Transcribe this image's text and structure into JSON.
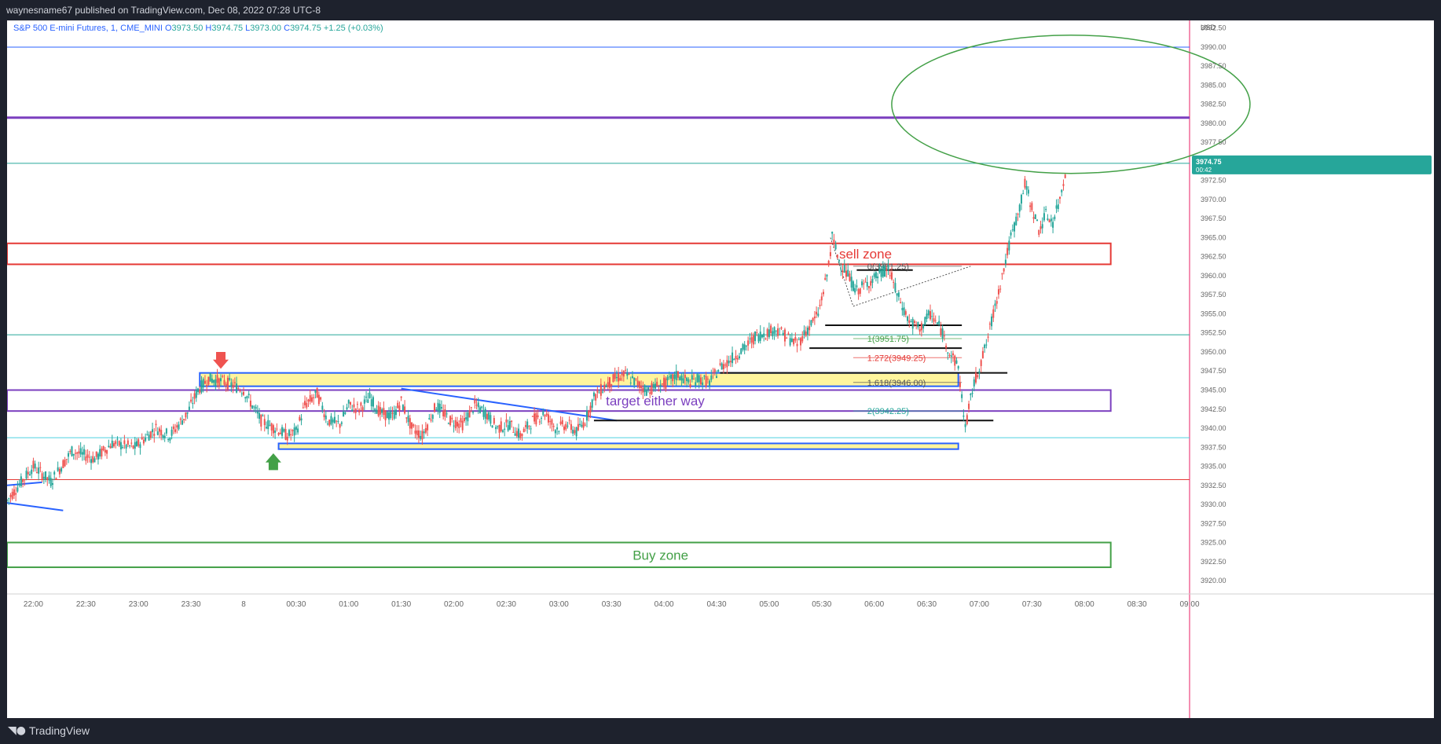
{
  "header": {
    "published_text": "waynesname67 published on TradingView.com, Dec 08, 2022 07:28 UTC-8"
  },
  "footer": {
    "brand": "TradingView"
  },
  "colors": {
    "up": "#26a69a",
    "down": "#ef5350",
    "accent_blue": "#2962ff",
    "purple": "#7b3fbf",
    "sell_red": "#e53935",
    "buy_green": "#43a047",
    "price_tag": "#26a69a"
  },
  "chart_data": {
    "type": "candlestick",
    "symbol_line": "S&P 500 E-mini Futures, 1, CME_MINI",
    "ohlc": {
      "O": "3973.50",
      "H": "3974.75",
      "L": "3973.00",
      "C": "3974.75",
      "change": "+1.25 (+0.03%)"
    },
    "legend": {
      "o_label": "O",
      "h_label": "H",
      "l_label": "L",
      "c_label": "C"
    },
    "currency": "USD",
    "price_tag": {
      "value": "3974.75",
      "countdown": "00:42"
    },
    "y_ticks": [
      3992.5,
      3990.0,
      3987.5,
      3985.0,
      3982.5,
      3980.0,
      3977.5,
      3972.5,
      3970.0,
      3967.5,
      3965.0,
      3962.5,
      3960.0,
      3957.5,
      3955.0,
      3952.5,
      3950.0,
      3947.5,
      3945.0,
      3942.5,
      3940.0,
      3937.5,
      3935.0,
      3932.5,
      3930.0,
      3927.5,
      3925.0,
      3922.5,
      3920.0
    ],
    "y_tick_labels": [
      "3992.50",
      "3990.00",
      "3987.50",
      "3985.00",
      "3982.50",
      "3980.00",
      "3977.50",
      "3972.50",
      "3970.00",
      "3967.50",
      "3965.00",
      "3962.50",
      "3960.00",
      "3957.50",
      "3955.00",
      "3952.50",
      "3950.00",
      "3947.50",
      "3945.00",
      "3942.50",
      "3940.00",
      "3937.50",
      "3935.00",
      "3932.50",
      "3930.00",
      "3927.50",
      "3925.00",
      "3922.50",
      "3920.00"
    ],
    "ylim": [
      3918.25,
      3993.5
    ],
    "x_ticks": [
      {
        "label": "22:00",
        "t": -150
      },
      {
        "label": "22:30",
        "t": -120
      },
      {
        "label": "23:00",
        "t": -90
      },
      {
        "label": "23:30",
        "t": -60
      },
      {
        "label": "8",
        "t": -30
      },
      {
        "label": "00:30",
        "t": 0
      },
      {
        "label": "01:00",
        "t": 30
      },
      {
        "label": "01:30",
        "t": 60
      },
      {
        "label": "02:00",
        "t": 90
      },
      {
        "label": "02:30",
        "t": 120
      },
      {
        "label": "03:00",
        "t": 150
      },
      {
        "label": "03:30",
        "t": 180
      },
      {
        "label": "04:00",
        "t": 210
      },
      {
        "label": "04:30",
        "t": 240
      },
      {
        "label": "05:00",
        "t": 270
      },
      {
        "label": "05:30",
        "t": 300
      },
      {
        "label": "06:00",
        "t": 330
      },
      {
        "label": "06:30",
        "t": 360
      },
      {
        "label": "07:00",
        "t": 390
      },
      {
        "label": "07:30",
        "t": 420
      },
      {
        "label": "08:00",
        "t": 450
      },
      {
        "label": "08:30",
        "t": 480
      },
      {
        "label": "09:00",
        "t": 510
      }
    ],
    "xlim": [
      -165,
      510
    ],
    "price_path": [
      [
        -165,
        3930.5
      ],
      [
        -150,
        3935
      ],
      [
        -140,
        3933
      ],
      [
        -128,
        3937
      ],
      [
        -115,
        3936
      ],
      [
        -105,
        3938
      ],
      [
        -92,
        3937.5
      ],
      [
        -80,
        3940
      ],
      [
        -72,
        3939
      ],
      [
        -62,
        3942
      ],
      [
        -56,
        3945
      ],
      [
        -50,
        3946.5
      ],
      [
        -40,
        3946
      ],
      [
        -30,
        3945
      ],
      [
        -20,
        3941
      ],
      [
        -12,
        3940
      ],
      [
        -5,
        3939
      ],
      [
        0,
        3939.5
      ],
      [
        5,
        3943
      ],
      [
        12,
        3944.5
      ],
      [
        18,
        3941
      ],
      [
        25,
        3940.5
      ],
      [
        30,
        3943
      ],
      [
        36,
        3942.5
      ],
      [
        42,
        3944
      ],
      [
        48,
        3942
      ],
      [
        55,
        3941.5
      ],
      [
        60,
        3943.5
      ],
      [
        66,
        3940
      ],
      [
        72,
        3939
      ],
      [
        80,
        3943
      ],
      [
        88,
        3941
      ],
      [
        95,
        3940.5
      ],
      [
        102,
        3943
      ],
      [
        108,
        3942
      ],
      [
        115,
        3940
      ],
      [
        122,
        3940.5
      ],
      [
        128,
        3939
      ],
      [
        135,
        3941
      ],
      [
        142,
        3942
      ],
      [
        148,
        3940
      ],
      [
        155,
        3940.5
      ],
      [
        160,
        3939.5
      ],
      [
        165,
        3941
      ],
      [
        170,
        3944
      ],
      [
        176,
        3945.5
      ],
      [
        182,
        3946.5
      ],
      [
        188,
        3947
      ],
      [
        194,
        3946
      ],
      [
        200,
        3945
      ],
      [
        206,
        3945.5
      ],
      [
        212,
        3946
      ],
      [
        218,
        3947
      ],
      [
        224,
        3946
      ],
      [
        230,
        3946.5
      ],
      [
        236,
        3946
      ],
      [
        242,
        3948
      ],
      [
        248,
        3949
      ],
      [
        256,
        3950.5
      ],
      [
        262,
        3952
      ],
      [
        268,
        3952.5
      ],
      [
        274,
        3953
      ],
      [
        280,
        3952
      ],
      [
        286,
        3951
      ],
      [
        292,
        3953
      ],
      [
        298,
        3955
      ],
      [
        303,
        3960
      ],
      [
        306,
        3965
      ],
      [
        310,
        3962
      ],
      [
        315,
        3960
      ],
      [
        320,
        3958
      ],
      [
        326,
        3959
      ],
      [
        332,
        3960
      ],
      [
        338,
        3961
      ],
      [
        344,
        3957
      ],
      [
        350,
        3954
      ],
      [
        356,
        3953
      ],
      [
        362,
        3955
      ],
      [
        368,
        3953
      ],
      [
        373,
        3950
      ],
      [
        378,
        3948
      ],
      [
        382,
        3940
      ],
      [
        386,
        3945
      ],
      [
        390,
        3948
      ],
      [
        394,
        3951
      ],
      [
        398,
        3955
      ],
      [
        402,
        3959
      ],
      [
        405,
        3962
      ],
      [
        408,
        3965
      ],
      [
        412,
        3968
      ],
      [
        416,
        3972
      ],
      [
        420,
        3969
      ],
      [
        424,
        3966
      ],
      [
        428,
        3968
      ],
      [
        432,
        3967
      ],
      [
        436,
        3970
      ],
      [
        440,
        3974.75
      ]
    ],
    "horizontal_lines": [
      {
        "name": "upper-blue-line",
        "price": 3990.0,
        "color": "#2962ff"
      },
      {
        "name": "purple-resistance-line",
        "price": 3980.75,
        "color": "#7b3fbf"
      },
      {
        "name": "last-price-line",
        "price": 3974.75,
        "color": "#26a69a"
      },
      {
        "name": "mid-green-line",
        "price": 3952.25,
        "color": "#26a69a"
      },
      {
        "name": "lower-cyan-line",
        "price": 3938.75,
        "color": "#4dd0e1"
      },
      {
        "name": "lower-red-line",
        "price": 3933.25,
        "color": "#e53935"
      }
    ],
    "zones": [
      {
        "name": "sell-zone",
        "label": "sell zone",
        "top": 3964.25,
        "bottom": 3961.5,
        "t_label": 325,
        "color": "#e53935",
        "text_color": "#e53935"
      },
      {
        "name": "target-either-way",
        "label": "target either way",
        "top": 3945.0,
        "bottom": 3942.25,
        "t_label": 205,
        "color": "#7b3fbf",
        "text_color": "#7b3fbf"
      },
      {
        "name": "buy-zone",
        "label": "Buy zone",
        "top": 3925.0,
        "bottom": 3921.75,
        "t_label": 208,
        "color": "#43a047",
        "text_color": "#43a047"
      }
    ],
    "fib_labels": [
      {
        "name": "fib-0",
        "text": "0(3961.25)",
        "price": 3961.25,
        "t": 326,
        "color": "#555555"
      },
      {
        "name": "fib-1",
        "text": "1(3951.75)",
        "price": 3951.75,
        "t": 326,
        "color": "#43a047"
      },
      {
        "name": "fib-1272",
        "text": "1.272(3949.25)",
        "price": 3949.25,
        "t": 326,
        "color": "#e53935"
      },
      {
        "name": "fib-1618",
        "text": "1.618(3946.00)",
        "price": 3946.0,
        "t": 326,
        "color": "#555555"
      },
      {
        "name": "fib-2",
        "text": "2(3942.25)",
        "price": 3942.25,
        "t": 326,
        "color": "#26a69a"
      }
    ]
  }
}
